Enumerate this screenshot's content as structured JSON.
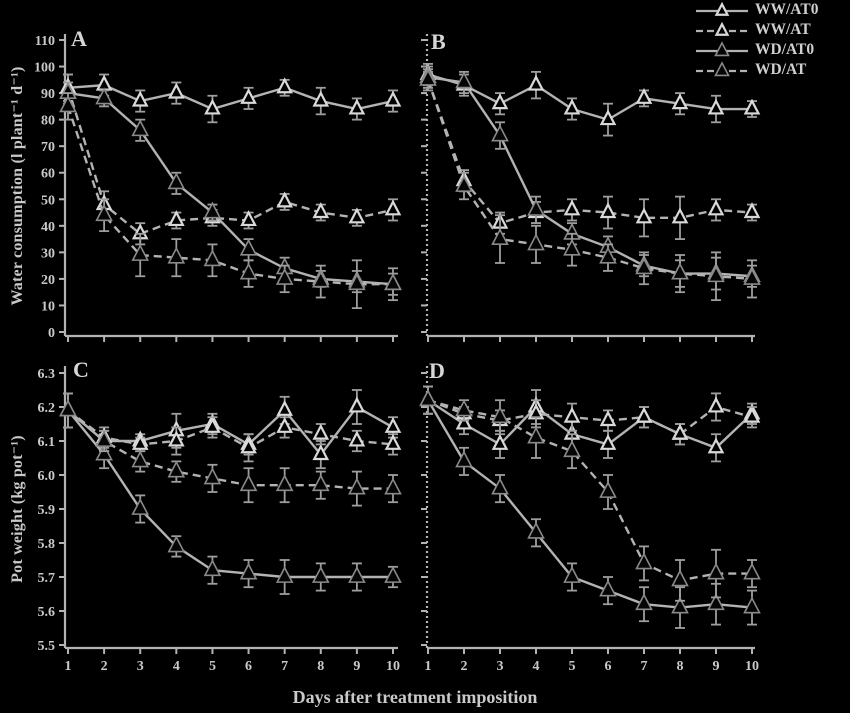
{
  "figure": {
    "x_axis_label": "Days after treatment imposition",
    "x_ticks": [
      "1",
      "2",
      "3",
      "4",
      "5",
      "6",
      "7",
      "8",
      "9",
      "10"
    ],
    "legend": [
      {
        "label": "WW/AT0",
        "marker": "open",
        "line": "solid"
      },
      {
        "label": "WW/AT",
        "marker": "open",
        "line": "dashed"
      },
      {
        "label": "WD/AT0",
        "marker": "filled",
        "line": "solid"
      },
      {
        "label": "WD/AT",
        "marker": "filled",
        "line": "dashed"
      }
    ],
    "colors": {
      "background": "#000000",
      "text": "#c9c9c9",
      "axis": "#b3b3b3",
      "line": "#b3b3b3",
      "error": "#9e9e9e",
      "marker_open_stroke": "#d9d9d9",
      "marker_filled_fill": "#050505",
      "marker_filled_stroke": "#8a8a8a"
    }
  },
  "chart_data": [
    {
      "type": "line",
      "panel": "A",
      "ylabel": "Water consumption (l plant⁻¹ d⁻¹)",
      "xlabel": "Days after treatment imposition",
      "x": [
        1,
        2,
        3,
        4,
        5,
        6,
        7,
        8,
        9,
        10
      ],
      "ylim": [
        0,
        110
      ],
      "yticks": [
        "0",
        "10",
        "20",
        "30",
        "40",
        "50",
        "60",
        "70",
        "80",
        "90",
        "100",
        "110"
      ],
      "grid": false,
      "series": [
        {
          "name": "WW/AT0",
          "marker": "open",
          "line": "solid",
          "values": [
            92,
            93,
            87,
            90,
            84,
            88,
            92,
            87,
            84,
            87
          ],
          "err": [
            5,
            4,
            4,
            4,
            5,
            4,
            3,
            5,
            4,
            4
          ]
        },
        {
          "name": "WW/AT",
          "marker": "open",
          "line": "dashed",
          "values": [
            92,
            48,
            37,
            42,
            43,
            42,
            49,
            45,
            43,
            46
          ],
          "err": [
            5,
            5,
            4,
            3,
            3,
            3,
            3,
            3,
            3,
            4
          ]
        },
        {
          "name": "WD/AT0",
          "marker": "filled",
          "line": "solid",
          "values": [
            90,
            88,
            76,
            56,
            45,
            31,
            24,
            20,
            19,
            18
          ],
          "err": [
            4,
            3,
            4,
            4,
            3,
            4,
            4,
            3,
            4,
            4
          ]
        },
        {
          "name": "WD/AT",
          "marker": "filled",
          "line": "dashed",
          "values": [
            85,
            44,
            29,
            28,
            27,
            22,
            20,
            19,
            18,
            18
          ],
          "err": [
            5,
            6,
            8,
            7,
            6,
            5,
            5,
            6,
            9,
            6
          ]
        }
      ]
    },
    {
      "type": "line",
      "panel": "B",
      "ylabel": "",
      "xlabel": "Days after treatment imposition",
      "x": [
        1,
        2,
        3,
        4,
        5,
        6,
        7,
        8,
        9,
        10
      ],
      "ylim": [
        0,
        110
      ],
      "yticks": [
        "0",
        "10",
        "20",
        "30",
        "40",
        "50",
        "60",
        "70",
        "80",
        "90",
        "100",
        "110"
      ],
      "grid": false,
      "series": [
        {
          "name": "WW/AT0",
          "marker": "open",
          "line": "solid",
          "values": [
            97,
            93,
            86,
            93,
            84,
            80,
            88,
            86,
            84,
            84
          ],
          "err": [
            4,
            4,
            4,
            5,
            4,
            6,
            3,
            4,
            5,
            3
          ]
        },
        {
          "name": "WW/AT",
          "marker": "open",
          "line": "dashed",
          "values": [
            95,
            57,
            41,
            45,
            46,
            45,
            43,
            43,
            46,
            45
          ],
          "err": [
            3,
            4,
            4,
            4,
            4,
            6,
            7,
            8,
            4,
            3
          ]
        },
        {
          "name": "WD/AT0",
          "marker": "filled",
          "line": "solid",
          "values": [
            96,
            94,
            74,
            46,
            37,
            32,
            25,
            22,
            22,
            21
          ],
          "err": [
            4,
            4,
            5,
            5,
            4,
            4,
            4,
            5,
            6,
            4
          ]
        },
        {
          "name": "WD/AT",
          "marker": "filled",
          "line": "dashed",
          "values": [
            95,
            55,
            35,
            33,
            31,
            28,
            24,
            22,
            21,
            20
          ],
          "err": [
            4,
            5,
            9,
            7,
            6,
            5,
            6,
            7,
            9,
            7
          ]
        }
      ]
    },
    {
      "type": "line",
      "panel": "C",
      "ylabel": "Pot weight (kg pot⁻¹)",
      "xlabel": "Days after treatment imposition",
      "x": [
        1,
        2,
        3,
        4,
        5,
        6,
        7,
        8,
        9,
        10
      ],
      "ylim": [
        5.5,
        6.3
      ],
      "yticks": [
        "5.5",
        "5.6",
        "5.7",
        "5.8",
        "5.9",
        "6.0",
        "6.1",
        "6.2",
        "6.3"
      ],
      "grid": false,
      "series": [
        {
          "name": "WW/AT0",
          "marker": "open",
          "line": "solid",
          "values": [
            6.19,
            6.1,
            6.1,
            6.13,
            6.15,
            6.09,
            6.19,
            6.06,
            6.2,
            6.14
          ],
          "err": [
            0.05,
            0.03,
            0.02,
            0.05,
            0.03,
            0.03,
            0.04,
            0.04,
            0.05,
            0.03
          ]
        },
        {
          "name": "WW/AT",
          "marker": "open",
          "line": "dashed",
          "values": [
            6.19,
            6.11,
            6.09,
            6.1,
            6.14,
            6.08,
            6.14,
            6.12,
            6.1,
            6.09
          ],
          "err": [
            0.05,
            0.03,
            0.02,
            0.04,
            0.03,
            0.04,
            0.03,
            0.03,
            0.03,
            0.03
          ]
        },
        {
          "name": "WD/AT0",
          "marker": "filled",
          "line": "solid",
          "values": [
            6.19,
            6.06,
            5.9,
            5.79,
            5.72,
            5.71,
            5.7,
            5.7,
            5.7,
            5.7
          ],
          "err": [
            0.05,
            0.04,
            0.04,
            0.03,
            0.04,
            0.04,
            0.05,
            0.04,
            0.04,
            0.03
          ]
        },
        {
          "name": "WD/AT",
          "marker": "filled",
          "line": "dashed",
          "values": [
            6.19,
            6.1,
            6.04,
            6.01,
            5.99,
            5.97,
            5.97,
            5.97,
            5.96,
            5.96
          ],
          "err": [
            0.05,
            0.03,
            0.03,
            0.03,
            0.04,
            0.05,
            0.05,
            0.04,
            0.05,
            0.04
          ]
        }
      ]
    },
    {
      "type": "line",
      "panel": "D",
      "ylabel": "",
      "xlabel": "Days after treatment imposition",
      "x": [
        1,
        2,
        3,
        4,
        5,
        6,
        7,
        8,
        9,
        10
      ],
      "ylim": [
        5.5,
        6.3
      ],
      "yticks": [
        "5.5",
        "5.6",
        "5.7",
        "5.8",
        "5.9",
        "6.0",
        "6.1",
        "6.2",
        "6.3"
      ],
      "grid": false,
      "series": [
        {
          "name": "WW/AT0",
          "marker": "open",
          "line": "solid",
          "values": [
            6.22,
            6.15,
            6.09,
            6.2,
            6.12,
            6.09,
            6.17,
            6.12,
            6.08,
            6.18
          ],
          "err": [
            0.04,
            0.03,
            0.04,
            0.05,
            0.05,
            0.04,
            0.03,
            0.03,
            0.04,
            0.03
          ]
        },
        {
          "name": "WW/AT",
          "marker": "open",
          "line": "dashed",
          "values": [
            6.22,
            6.18,
            6.16,
            6.18,
            6.17,
            6.16,
            6.17,
            6.12,
            6.2,
            6.17
          ],
          "err": [
            0.04,
            0.02,
            0.03,
            0.04,
            0.04,
            0.03,
            0.03,
            0.03,
            0.04,
            0.03
          ]
        },
        {
          "name": "WD/AT0",
          "marker": "filled",
          "line": "solid",
          "values": [
            6.22,
            6.04,
            5.96,
            5.83,
            5.7,
            5.66,
            5.62,
            5.61,
            5.62,
            5.61
          ],
          "err": [
            0.04,
            0.04,
            0.04,
            0.04,
            0.04,
            0.04,
            0.05,
            0.06,
            0.06,
            0.05
          ]
        },
        {
          "name": "WD/AT",
          "marker": "filled",
          "line": "dashed",
          "values": [
            6.22,
            6.19,
            6.17,
            6.11,
            6.07,
            5.95,
            5.74,
            5.69,
            5.71,
            5.71
          ],
          "err": [
            0.04,
            0.03,
            0.05,
            0.06,
            0.05,
            0.05,
            0.05,
            0.06,
            0.07,
            0.04
          ]
        }
      ]
    }
  ]
}
